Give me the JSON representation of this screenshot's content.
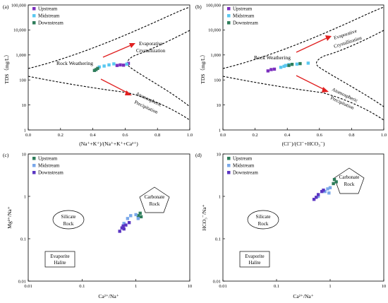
{
  "colors": {
    "Upstream": "#7b2fbe",
    "Midstream": "#5ac8f0",
    "Downstream": "#2e7d5b",
    "Downstream_cd": "#5a35c2",
    "Upstream_cd": "#2e7d5b",
    "Midstream_cd": "#7aa8ea",
    "arrow": "#e02020"
  },
  "chart_data": [
    {
      "panel": "(a)",
      "type": "scatter",
      "xlabel": "(Na⁺+K⁺)/(Na⁺+K⁺+Ca²⁺)",
      "ylabel": "TDS（mg/L）",
      "xlim": [
        0.0,
        1.0
      ],
      "ylim": [
        1,
        100000
      ],
      "yscale": "log",
      "xticks": [
        "0.0",
        "0.2",
        "0.4",
        "0.6",
        "0.8",
        "1.0"
      ],
      "yticks": [
        "1",
        "10",
        "100",
        "1,000",
        "10,000",
        "100,000"
      ],
      "legend": [
        "Upstream",
        "Midstream",
        "Downstream"
      ],
      "legend_position": "top-left",
      "annotations": [
        "Rock Weathering",
        "Evaporative Crystallization",
        "Atomospheric Precipitation"
      ],
      "series": [
        {
          "name": "Upstream",
          "points": [
            [
              0.55,
              380
            ],
            [
              0.57,
              400
            ],
            [
              0.59,
              390
            ],
            [
              0.62,
              460
            ]
          ]
        },
        {
          "name": "Midstream",
          "points": [
            [
              0.44,
              330
            ],
            [
              0.47,
              360
            ],
            [
              0.5,
              400
            ],
            [
              0.53,
              440
            ],
            [
              0.61,
              430
            ]
          ]
        },
        {
          "name": "Downstream",
          "points": [
            [
              0.41,
              240
            ],
            [
              0.42,
              260
            ],
            [
              0.43,
              290
            ]
          ]
        }
      ]
    },
    {
      "panel": "(b)",
      "type": "scatter",
      "xlabel": "(Cl⁻)/(Cl⁻+HCO₃⁻)",
      "ylabel": "TDS（mg/L）",
      "xlim": [
        0.0,
        1.0
      ],
      "ylim": [
        1,
        100000
      ],
      "yscale": "log",
      "xticks": [
        "0.0",
        "0.2",
        "0.4",
        "0.6",
        "0.8",
        "1.0"
      ],
      "yticks": [
        "1",
        "10",
        "100",
        "1,000",
        "10,000",
        "100,000"
      ],
      "legend": [
        "Upstream",
        "Midstream",
        "Downstream"
      ],
      "legend_position": "top-left",
      "annotations": [
        "Rock Weathering",
        "Evaporative Crystallization",
        "Atomospheric Precipitation"
      ],
      "series": [
        {
          "name": "Upstream",
          "points": [
            [
              0.28,
              230
            ],
            [
              0.3,
              260
            ],
            [
              0.32,
              270
            ]
          ]
        },
        {
          "name": "Midstream",
          "points": [
            [
              0.36,
              320
            ],
            [
              0.38,
              350
            ],
            [
              0.39,
              380
            ],
            [
              0.41,
              410
            ],
            [
              0.46,
              430
            ],
            [
              0.53,
              470
            ]
          ]
        },
        {
          "name": "Downstream",
          "points": [
            [
              0.48,
              450
            ],
            [
              0.41,
              380
            ],
            [
              0.43,
              420
            ]
          ]
        }
      ]
    },
    {
      "panel": "(c)",
      "type": "scatter",
      "xlabel": "Ca²⁺/Na⁺",
      "ylabel": "Mg²⁺/Na⁺",
      "xlim": [
        0.01,
        10
      ],
      "ylim": [
        0.01,
        10
      ],
      "xscale": "log",
      "yscale": "log",
      "xticks": [
        "0.01",
        "0.1",
        "1",
        "10"
      ],
      "yticks": [
        "0.01",
        "0.1",
        "1",
        "10"
      ],
      "legend": [
        "Upstream",
        "Midstream",
        "Downstream"
      ],
      "legend_position": "top-left",
      "annotations": [
        "Carbonate Rock",
        "Silicate Rock",
        "Evaporite Halite"
      ],
      "series": [
        {
          "name": "Upstream",
          "points": [
            [
              1.1,
              0.35
            ],
            [
              1.2,
              0.4
            ],
            [
              1.25,
              0.33
            ]
          ]
        },
        {
          "name": "Midstream",
          "points": [
            [
              0.7,
              0.3
            ],
            [
              0.8,
              0.35
            ],
            [
              1.0,
              0.37
            ],
            [
              1.1,
              0.3
            ],
            [
              0.6,
              0.23
            ]
          ]
        },
        {
          "name": "Downstream",
          "points": [
            [
              0.5,
              0.15
            ],
            [
              0.55,
              0.18
            ],
            [
              0.6,
              0.17
            ],
            [
              0.65,
              0.21
            ],
            [
              0.75,
              0.24
            ],
            [
              0.58,
              0.2
            ]
          ]
        }
      ]
    },
    {
      "panel": "(d)",
      "type": "scatter",
      "xlabel": "Ca²⁺/Na⁺",
      "ylabel": "HCO₃⁻/Na⁺",
      "xlim": [
        0.01,
        10
      ],
      "ylim": [
        0.01,
        10
      ],
      "xscale": "log",
      "yscale": "log",
      "xticks": [
        "0.01",
        "0.1",
        "1",
        "10"
      ],
      "yticks": [
        "0.01",
        "0.1",
        "1",
        "10"
      ],
      "legend": [
        "Upstream",
        "Midstream",
        "Downstream"
      ],
      "legend_position": "top-left",
      "annotations": [
        "Carbonate Rock",
        "Silicate Rock",
        "Evaporite Halite"
      ],
      "series": [
        {
          "name": "Upstream",
          "points": [
            [
              1.2,
              2.5
            ],
            [
              1.3,
              2.2
            ],
            [
              1.15,
              2.0
            ]
          ]
        },
        {
          "name": "Midstream",
          "points": [
            [
              0.9,
              1.5
            ],
            [
              1.0,
              1.6
            ],
            [
              0.8,
              1.3
            ],
            [
              0.95,
              1.2
            ],
            [
              0.6,
              1.0
            ]
          ]
        },
        {
          "name": "Downstream",
          "points": [
            [
              0.5,
              0.85
            ],
            [
              0.6,
              1.1
            ],
            [
              0.7,
              1.3
            ],
            [
              0.75,
              1.4
            ],
            [
              0.55,
              0.95
            ]
          ]
        }
      ]
    }
  ]
}
